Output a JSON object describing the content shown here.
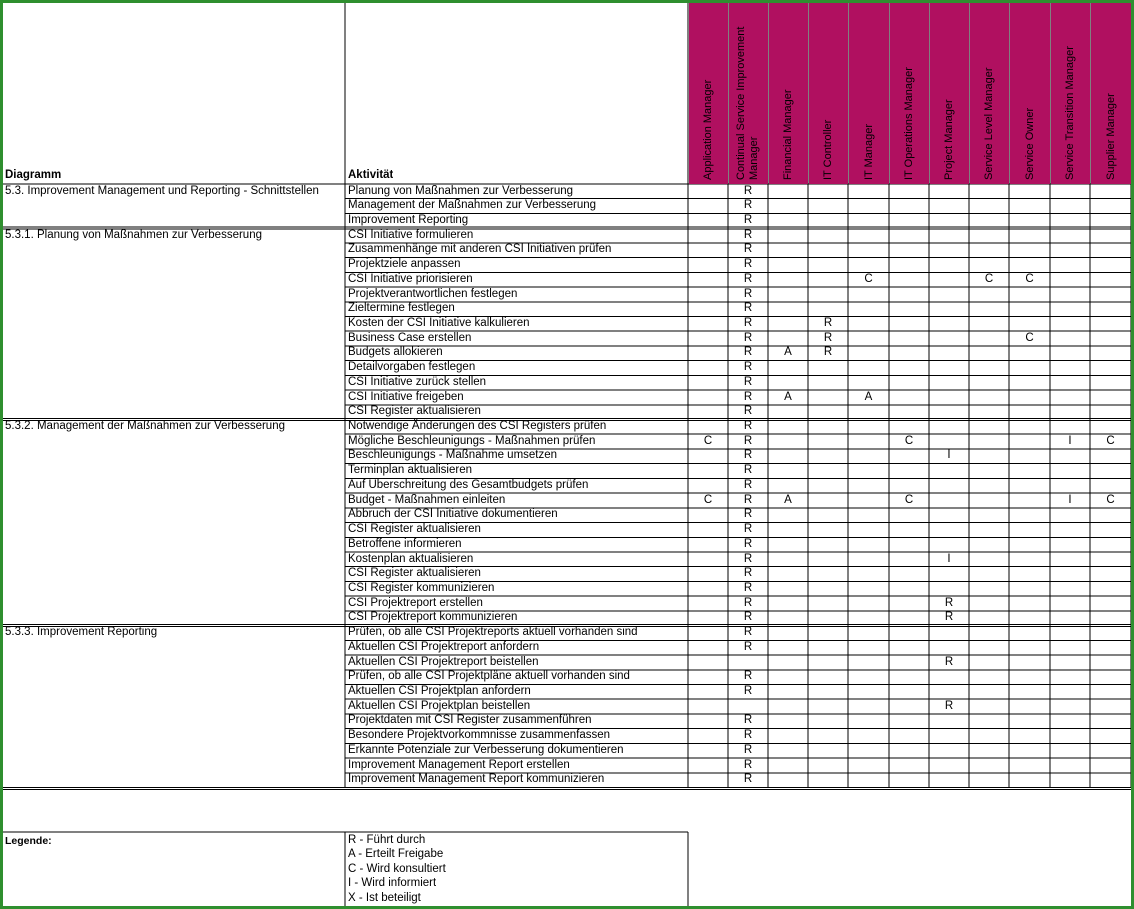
{
  "header": {
    "diagram_label": "Diagramm",
    "activity_label": "Aktivität"
  },
  "colors": {
    "role_header_bg": "#b01060",
    "frame_border": "#2f8f2f",
    "grid_line": "#000000"
  },
  "roles": [
    [
      "Application Manager"
    ],
    [
      "Continual Service Improvement",
      "Manager"
    ],
    [
      "Financial Manager"
    ],
    [
      "IT Controller"
    ],
    [
      "IT Manager"
    ],
    [
      "IT Operations Manager"
    ],
    [
      "Project Manager"
    ],
    [
      "Service Level Manager"
    ],
    [
      "Service Owner"
    ],
    [
      "Service Transition Manager"
    ],
    [
      "Supplier Manager"
    ]
  ],
  "rows": [
    {
      "diagram": "5.3. Improvement Management und Reporting - Schnittstellen",
      "activity": "Planung von  Maßnahmen zur  Verbesserung",
      "marks": [
        "",
        "R",
        "",
        "",
        "",
        "",
        "",
        "",
        "",
        "",
        ""
      ]
    },
    {
      "diagram": "",
      "activity": "Management der  Maßnahmen zur  Verbesserung",
      "marks": [
        "",
        "R",
        "",
        "",
        "",
        "",
        "",
        "",
        "",
        "",
        ""
      ]
    },
    {
      "diagram": "",
      "activity": "Improvement Reporting",
      "marks": [
        "",
        "R",
        "",
        "",
        "",
        "",
        "",
        "",
        "",
        "",
        ""
      ]
    },
    {
      "diagram": "5.3.1. Planung von Maßnahmen zur Verbesserung",
      "activity": "CSI Initiative formulieren",
      "marks": [
        "",
        "R",
        "",
        "",
        "",
        "",
        "",
        "",
        "",
        "",
        ""
      ]
    },
    {
      "diagram": "",
      "activity": "Zusammenhänge mit anderen CSI Initiativen prüfen",
      "marks": [
        "",
        "R",
        "",
        "",
        "",
        "",
        "",
        "",
        "",
        "",
        ""
      ]
    },
    {
      "diagram": "",
      "activity": "Projektziele anpassen",
      "marks": [
        "",
        "R",
        "",
        "",
        "",
        "",
        "",
        "",
        "",
        "",
        ""
      ]
    },
    {
      "diagram": "",
      "activity": "CSI Initiative priorisieren",
      "marks": [
        "",
        "R",
        "",
        "",
        "C",
        "",
        "",
        "C",
        "C",
        "",
        ""
      ]
    },
    {
      "diagram": "",
      "activity": "Projektverantwortlichen festlegen",
      "marks": [
        "",
        "R",
        "",
        "",
        "",
        "",
        "",
        "",
        "",
        "",
        ""
      ]
    },
    {
      "diagram": "",
      "activity": "Zieltermine festlegen",
      "marks": [
        "",
        "R",
        "",
        "",
        "",
        "",
        "",
        "",
        "",
        "",
        ""
      ]
    },
    {
      "diagram": "",
      "activity": "Kosten der CSI Initiative kalkulieren",
      "marks": [
        "",
        "R",
        "",
        "R",
        "",
        "",
        "",
        "",
        "",
        "",
        ""
      ]
    },
    {
      "diagram": "",
      "activity": "Business Case erstellen",
      "marks": [
        "",
        "R",
        "",
        "R",
        "",
        "",
        "",
        "",
        "C",
        "",
        ""
      ]
    },
    {
      "diagram": "",
      "activity": "Budgets allokieren",
      "marks": [
        "",
        "R",
        "A",
        "R",
        "",
        "",
        "",
        "",
        "",
        "",
        ""
      ]
    },
    {
      "diagram": "",
      "activity": "Detailvorgaben festlegen",
      "marks": [
        "",
        "R",
        "",
        "",
        "",
        "",
        "",
        "",
        "",
        "",
        ""
      ]
    },
    {
      "diagram": "",
      "activity": "CSI Initiative zurück stellen",
      "marks": [
        "",
        "R",
        "",
        "",
        "",
        "",
        "",
        "",
        "",
        "",
        ""
      ]
    },
    {
      "diagram": "",
      "activity": "CSI Initiative freigeben",
      "marks": [
        "",
        "R",
        "A",
        "",
        "A",
        "",
        "",
        "",
        "",
        "",
        ""
      ]
    },
    {
      "diagram": "",
      "activity": "CSI Register aktualisieren",
      "marks": [
        "",
        "R",
        "",
        "",
        "",
        "",
        "",
        "",
        "",
        "",
        ""
      ]
    },
    {
      "diagram": "5.3.2. Management der Maßnahmen zur Verbesserung",
      "activity": "Notwendige Änderungen des CSI Registers prüfen",
      "marks": [
        "",
        "R",
        "",
        "",
        "",
        "",
        "",
        "",
        "",
        "",
        ""
      ]
    },
    {
      "diagram": "",
      "activity": "Mögliche Beschleunigungs - Maßnahmen prüfen",
      "marks": [
        "C",
        "R",
        "",
        "",
        "",
        "C",
        "",
        "",
        "",
        "I",
        "C"
      ]
    },
    {
      "diagram": "",
      "activity": "Beschleunigungs - Maßnahme umsetzen",
      "marks": [
        "",
        "R",
        "",
        "",
        "",
        "",
        "I",
        "",
        "",
        "",
        ""
      ]
    },
    {
      "diagram": "",
      "activity": "Terminplan aktualisieren",
      "marks": [
        "",
        "R",
        "",
        "",
        "",
        "",
        "",
        "",
        "",
        "",
        ""
      ]
    },
    {
      "diagram": "",
      "activity": "Auf Überschreitung des Gesamtbudgets prüfen",
      "marks": [
        "",
        "R",
        "",
        "",
        "",
        "",
        "",
        "",
        "",
        "",
        ""
      ]
    },
    {
      "diagram": "",
      "activity": "Budget - Maßnahmen einleiten",
      "marks": [
        "C",
        "R",
        "A",
        "",
        "",
        "C",
        "",
        "",
        "",
        "I",
        "C"
      ]
    },
    {
      "diagram": "",
      "activity": "Abbruch der CSI Initiative dokumentieren",
      "marks": [
        "",
        "R",
        "",
        "",
        "",
        "",
        "",
        "",
        "",
        "",
        ""
      ]
    },
    {
      "diagram": "",
      "activity": "CSI Register aktualisieren",
      "marks": [
        "",
        "R",
        "",
        "",
        "",
        "",
        "",
        "",
        "",
        "",
        ""
      ]
    },
    {
      "diagram": "",
      "activity": "Betroffene informieren",
      "marks": [
        "",
        "R",
        "",
        "",
        "",
        "",
        "",
        "",
        "",
        "",
        ""
      ]
    },
    {
      "diagram": "",
      "activity": "Kostenplan aktualisieren",
      "marks": [
        "",
        "R",
        "",
        "",
        "",
        "",
        "I",
        "",
        "",
        "",
        ""
      ]
    },
    {
      "diagram": "",
      "activity": "CSI Register  aktualisieren",
      "marks": [
        "",
        "R",
        "",
        "",
        "",
        "",
        "",
        "",
        "",
        "",
        ""
      ]
    },
    {
      "diagram": "",
      "activity": "CSI Register kommunizieren",
      "marks": [
        "",
        "R",
        "",
        "",
        "",
        "",
        "",
        "",
        "",
        "",
        ""
      ]
    },
    {
      "diagram": "",
      "activity": "CSI Projektreport erstellen",
      "marks": [
        "",
        "R",
        "",
        "",
        "",
        "",
        "R",
        "",
        "",
        "",
        ""
      ]
    },
    {
      "diagram": "",
      "activity": "CSI Projektreport  kommunizieren",
      "marks": [
        "",
        "R",
        "",
        "",
        "",
        "",
        "R",
        "",
        "",
        "",
        ""
      ]
    },
    {
      "diagram": "5.3.3. Improvement Reporting",
      "activity": "Prüfen, ob alle CSI Projektreports  aktuell vorhanden sind",
      "marks": [
        "",
        "R",
        "",
        "",
        "",
        "",
        "",
        "",
        "",
        "",
        ""
      ]
    },
    {
      "diagram": "",
      "activity": "Aktuellen CSI Projektreport anfordern",
      "marks": [
        "",
        "R",
        "",
        "",
        "",
        "",
        "",
        "",
        "",
        "",
        ""
      ]
    },
    {
      "diagram": "",
      "activity": "Aktuellen CSI Projektreport beistellen",
      "marks": [
        "",
        "",
        "",
        "",
        "",
        "",
        "R",
        "",
        "",
        "",
        ""
      ]
    },
    {
      "diagram": "",
      "activity": "Prüfen, ob alle CSI Projektpläne  aktuell vorhanden sind",
      "marks": [
        "",
        "R",
        "",
        "",
        "",
        "",
        "",
        "",
        "",
        "",
        ""
      ]
    },
    {
      "diagram": "",
      "activity": "Aktuellen CSI Projektplan anfordern",
      "marks": [
        "",
        "R",
        "",
        "",
        "",
        "",
        "",
        "",
        "",
        "",
        ""
      ]
    },
    {
      "diagram": "",
      "activity": "Aktuellen CSI Projektplan beistellen",
      "marks": [
        "",
        "",
        "",
        "",
        "",
        "",
        "R",
        "",
        "",
        "",
        ""
      ]
    },
    {
      "diagram": "",
      "activity": "Projektdaten mit CSI Register zusammenführen",
      "marks": [
        "",
        "R",
        "",
        "",
        "",
        "",
        "",
        "",
        "",
        "",
        ""
      ]
    },
    {
      "diagram": "",
      "activity": "Besondere Projektvorkommnisse zusammenfassen",
      "marks": [
        "",
        "R",
        "",
        "",
        "",
        "",
        "",
        "",
        "",
        "",
        ""
      ]
    },
    {
      "diagram": "",
      "activity": "Erkannte Potenziale zur Verbesserung dokumentieren",
      "marks": [
        "",
        "R",
        "",
        "",
        "",
        "",
        "",
        "",
        "",
        "",
        ""
      ]
    },
    {
      "diagram": "",
      "activity": "Improvement Management Report  erstellen",
      "marks": [
        "",
        "R",
        "",
        "",
        "",
        "",
        "",
        "",
        "",
        "",
        ""
      ]
    },
    {
      "diagram": "",
      "activity": "Improvement Management Report kommunizieren",
      "marks": [
        "",
        "R",
        "",
        "",
        "",
        "",
        "",
        "",
        "",
        "",
        ""
      ]
    }
  ],
  "legend": {
    "title": "Legende:",
    "items": [
      "R - Führt durch",
      "A - Erteilt Freigabe",
      "C - Wird konsultiert",
      "I - Wird informiert",
      "X - Ist beteiligt"
    ]
  }
}
